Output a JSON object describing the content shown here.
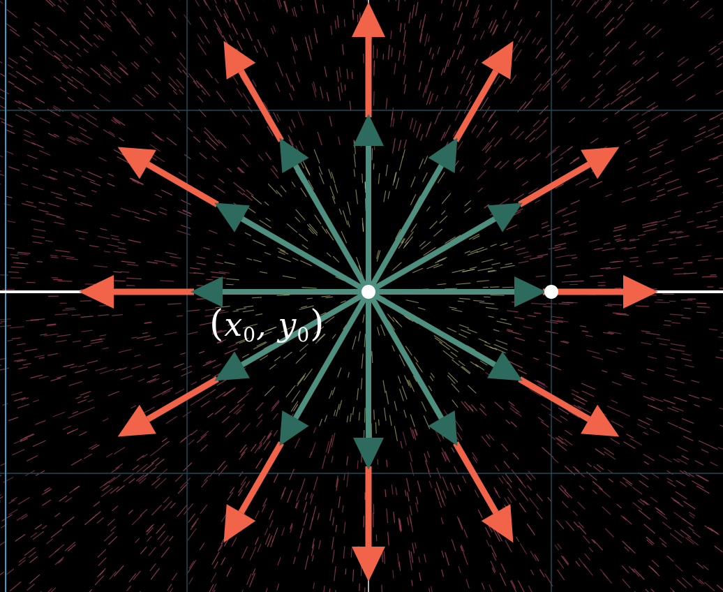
{
  "label": {
    "open": "(",
    "x": "x",
    "x_sub": "0",
    "comma": ",",
    "y": "y",
    "y_sub": "0",
    "close": ")"
  },
  "colors": {
    "background": "#000000",
    "outer_arrows": "#f2644a",
    "inner_arrows": "#2d6b5e",
    "inner_arrow_shaft": "#4e8f80",
    "grid": "#1e4a5a",
    "axis": "#ffffff",
    "field_lines": "#a8455e",
    "field_lines_center": "#d9d98a",
    "point": "#ffffff"
  },
  "arrow_count": 12
}
